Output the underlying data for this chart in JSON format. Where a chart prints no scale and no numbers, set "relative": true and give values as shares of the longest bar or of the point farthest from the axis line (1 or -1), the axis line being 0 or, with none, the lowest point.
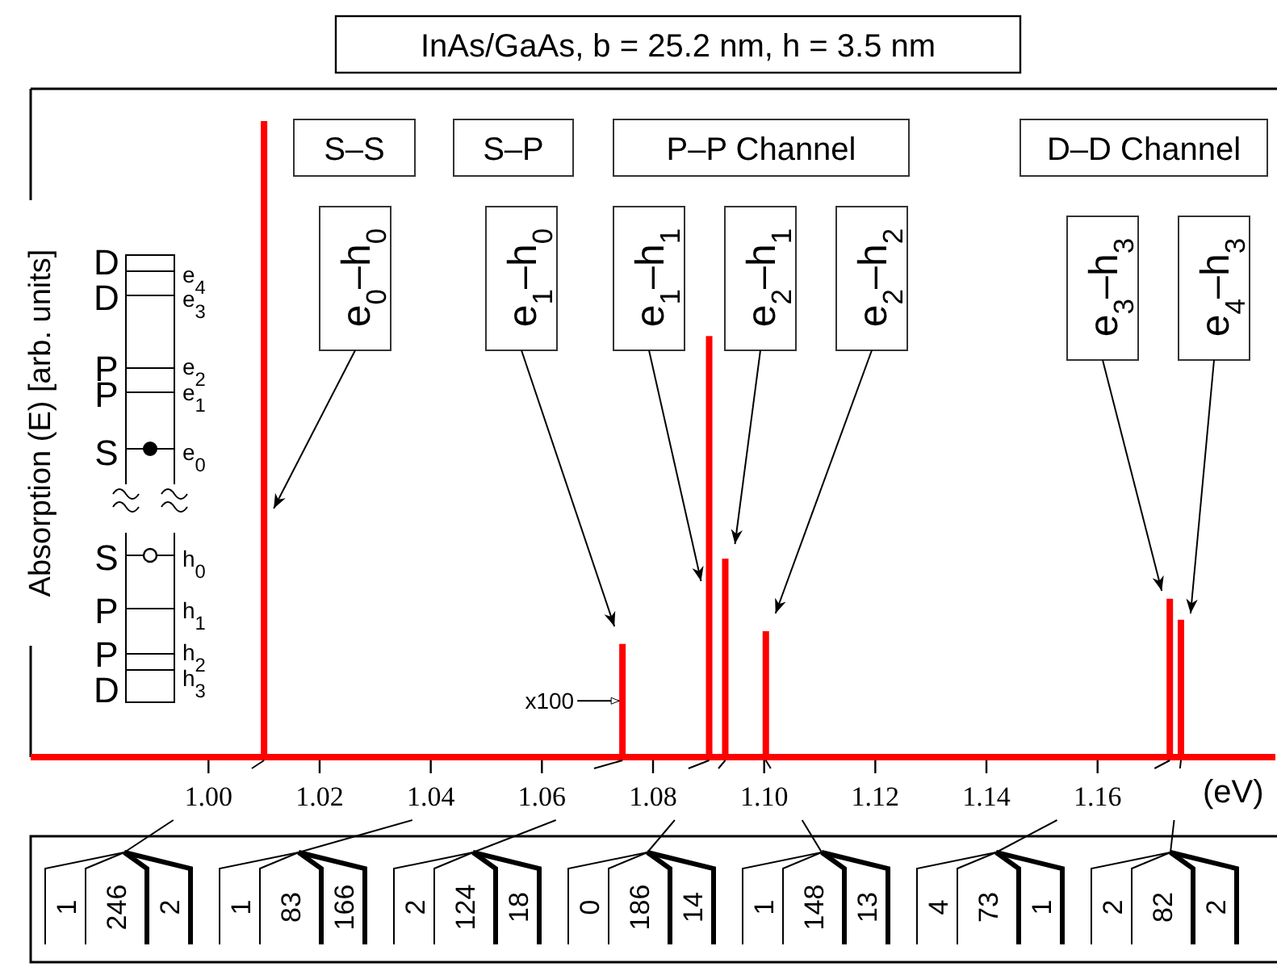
{
  "chart_data": {
    "type": "bar",
    "title": "InAs/GaAs, b = 25.2 nm, h = 3.5 nm",
    "xlabel": "(eV)",
    "ylabel": "Absorption (E) [arb. units]",
    "relative": true,
    "color": "#ff0000",
    "x": [
      1.01,
      1.0745,
      1.0901,
      1.093,
      1.1003,
      1.173,
      1.175
    ],
    "values": [
      1,
      0.178,
      0.662,
      0.312,
      0.198,
      0.249,
      0.216
    ],
    "xlim": [
      0.968,
      1.192
    ],
    "xticks": [
      {
        "value": 1.0,
        "label": "1.00"
      },
      {
        "value": 1.02,
        "label": "1.02"
      },
      {
        "value": 1.04,
        "label": "1.04"
      },
      {
        "value": 1.06,
        "label": "1.06"
      },
      {
        "value": 1.08,
        "label": "1.08"
      },
      {
        "value": 1.1,
        "label": "1.10"
      },
      {
        "value": 1.12,
        "label": "1.12"
      },
      {
        "value": 1.14,
        "label": "1.14"
      },
      {
        "value": 1.16,
        "label": "1.16"
      }
    ],
    "annotations": [
      "S–S",
      "S–P",
      "P–P Channel",
      "D–D Channel",
      "D",
      "D",
      "P",
      "P",
      "S",
      "S",
      "P",
      "P",
      "D",
      "e$_{4}$",
      "e$_{3}$",
      "e$_{2}$",
      "e$_{1}$",
      "e$_{0}$",
      "h$_{0}$",
      "h$_{1}$",
      "h$_{2}$",
      "h$_{3}$",
      "e$_{0}$–h$_{0}$",
      "e$_{1}$–h$_{0}$",
      "e$_{1}$–h$_{1}$",
      "e$_{2}$–h$_{1}$",
      "e$_{2}$–h$_{2}$",
      "e$_{3}$–h$_{3}$",
      "e$_{4}$–h$_{3}$",
      {
        "text": "x100",
        "x": 1.0745,
        "y": 0.091
      },
      "1",
      "246",
      "2",
      "1",
      "83",
      "166",
      "2",
      "124",
      "18",
      "0",
      "186",
      "14",
      "1",
      "148",
      "13",
      "4",
      "73",
      "1",
      "2",
      "82",
      "2"
    ]
  }
}
